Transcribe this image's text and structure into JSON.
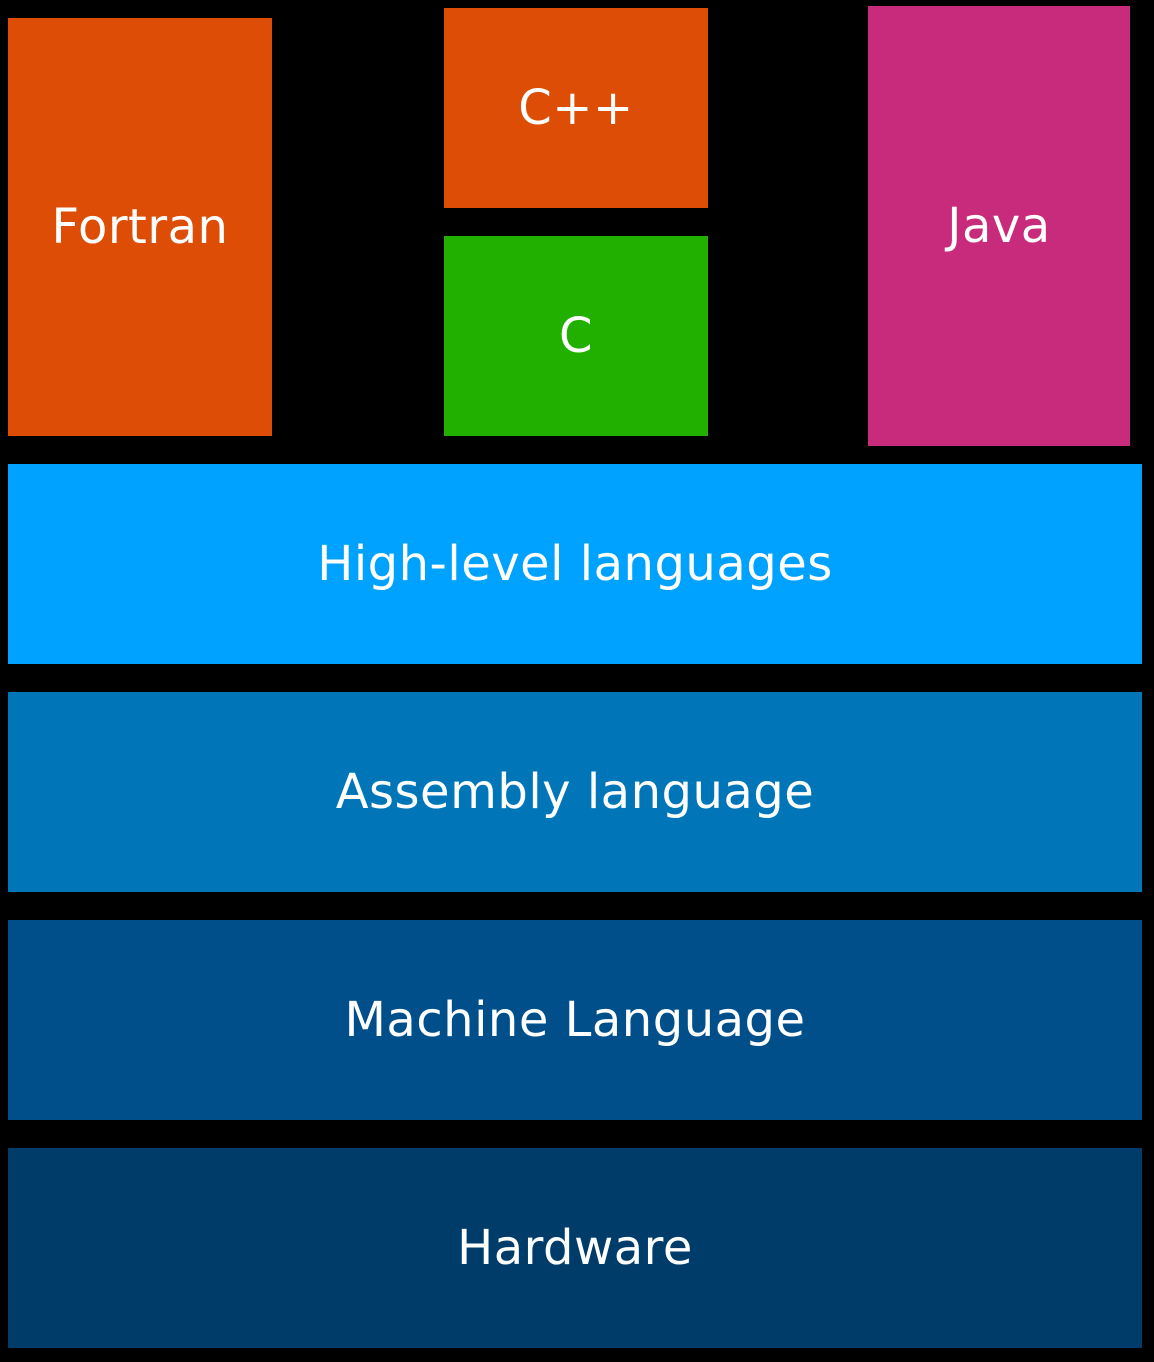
{
  "languages": {
    "fortran": {
      "label": "Fortran",
      "color": "#DD4D05"
    },
    "cpp": {
      "label": "C++",
      "color": "#DD4D05"
    },
    "c": {
      "label": "C",
      "color": "#22B000"
    },
    "java": {
      "label": "Java",
      "color": "#C82B7C"
    }
  },
  "layers": [
    {
      "label": "High-level languages",
      "color": "#00A2FF"
    },
    {
      "label": "Assembly language",
      "color": "#0076B9"
    },
    {
      "label": "Machine Language",
      "color": "#004F8A"
    },
    {
      "label": "Hardware",
      "color": "#003C6A"
    }
  ]
}
